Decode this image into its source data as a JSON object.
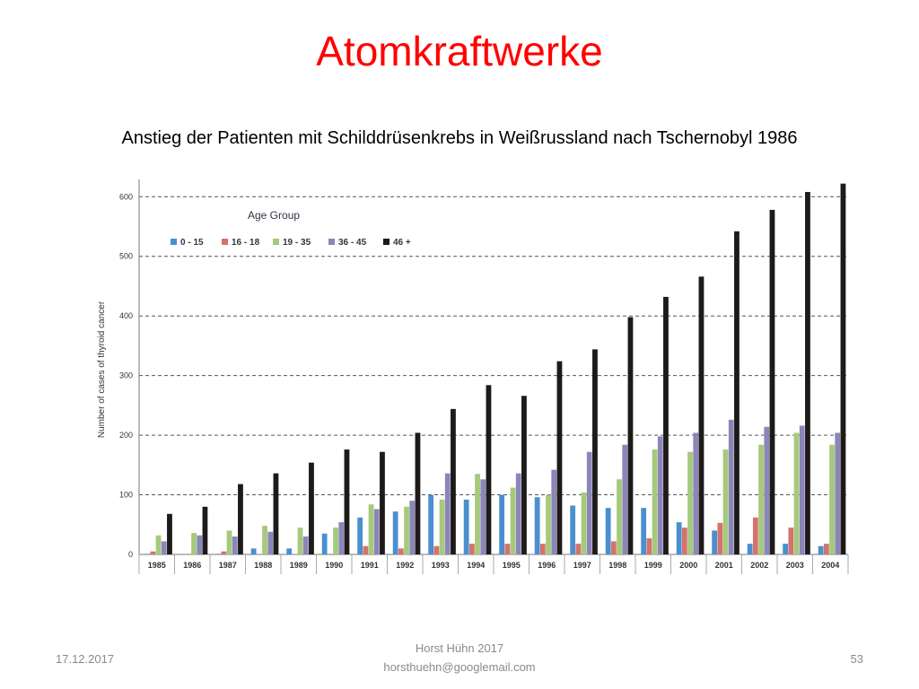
{
  "slide": {
    "title": "Atomkraftwerke",
    "subtitle": "Anstieg der Patienten mit Schilddrüsenkrebs in Weißrussland nach Tschernobyl 1986",
    "title_color": "#ff0000"
  },
  "footer": {
    "date": "17.12.2017",
    "author": "Horst Hühn 2017",
    "email": "horsthuehn@googlemail.com",
    "page": "53"
  },
  "chart_data": {
    "type": "bar",
    "title": "",
    "xlabel": "",
    "ylabel": "Number of cases of thyroid cancer",
    "ylim": [
      0,
      620
    ],
    "yticks": [
      0,
      100,
      200,
      300,
      400,
      500,
      600
    ],
    "grid": "horizontal dashed",
    "legend_title": "Age Group",
    "legend_position": "top-left",
    "categories": [
      "1985",
      "1986",
      "1987",
      "1988",
      "1989",
      "1990",
      "1991",
      "1992",
      "1993",
      "1994",
      "1995",
      "1996",
      "1997",
      "1998",
      "1999",
      "2000",
      "2001",
      "2002",
      "2003",
      "2004"
    ],
    "series": [
      {
        "name": "0 - 15",
        "color": "#4a8fd0",
        "values": [
          1,
          0,
          1,
          10,
          10,
          35,
          62,
          72,
          100,
          92,
          100,
          96,
          82,
          78,
          78,
          54,
          40,
          18,
          18,
          14
        ]
      },
      {
        "name": "16 - 18",
        "color": "#d4736b",
        "values": [
          5,
          0,
          5,
          0,
          0,
          0,
          14,
          10,
          14,
          18,
          18,
          18,
          18,
          22,
          27,
          45,
          53,
          62,
          45,
          18
        ]
      },
      {
        "name": "19 - 35",
        "color": "#a6c97c",
        "values": [
          32,
          36,
          40,
          48,
          45,
          45,
          84,
          80,
          92,
          135,
          112,
          100,
          104,
          126,
          176,
          172,
          176,
          184,
          204,
          184
        ]
      },
      {
        "name": "36 - 45",
        "color": "#8b86b8",
        "values": [
          22,
          32,
          30,
          38,
          30,
          54,
          76,
          90,
          136,
          126,
          136,
          142,
          172,
          184,
          198,
          204,
          226,
          214,
          216,
          204
        ]
      },
      {
        "name": "46 +",
        "color": "#1f1a1a",
        "values": [
          68,
          80,
          118,
          136,
          154,
          176,
          172,
          204,
          244,
          284,
          266,
          324,
          344,
          398,
          432,
          466,
          542,
          578,
          608,
          622
        ]
      }
    ]
  }
}
